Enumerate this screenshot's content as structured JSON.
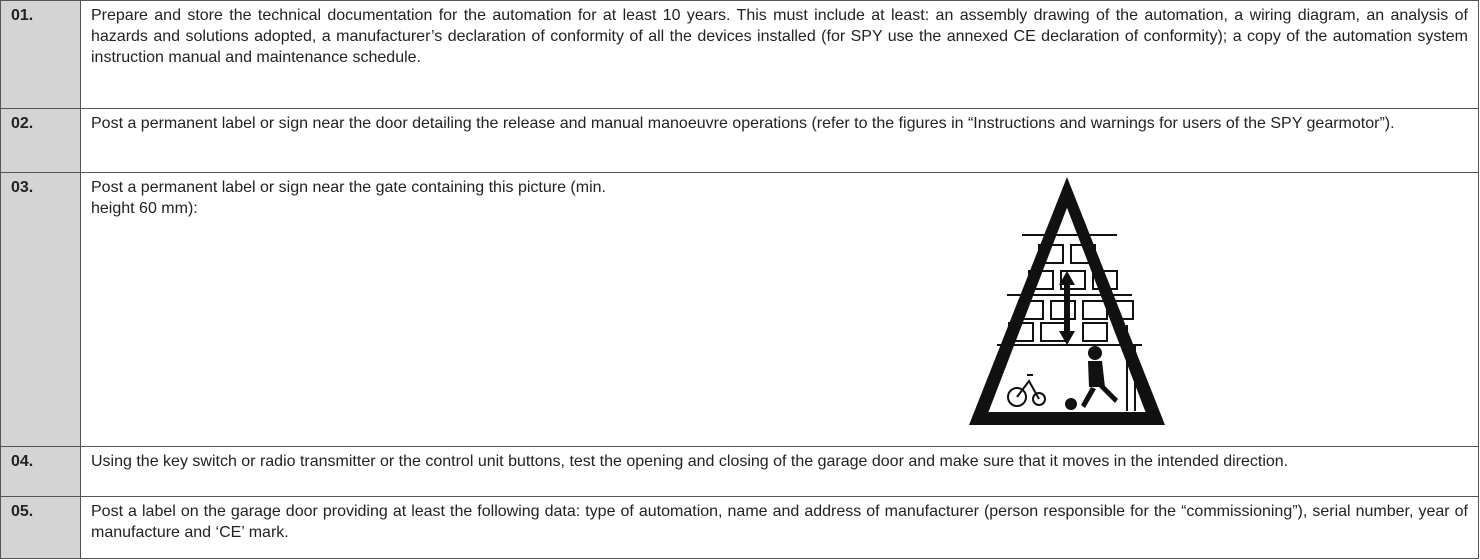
{
  "rows": [
    {
      "number": "01.",
      "text": "Prepare and store the technical documentation for the automation for at least 10 years. This must include at least: an assembly drawing of the automation, a wiring diagram, an analysis of hazards and solutions adopted, a manufacturer’s declaration of conformity of all the devices installed (for SPY use the annexed CE declaration of conformity); a copy of the automation system instruction manual and maintenance schedule."
    },
    {
      "number": "02.",
      "text": "Post a permanent label or sign near the door detailing the release and manual manoeuvre operations (refer to the figures in “Instructions and warnings for users of the SPY gearmotor”)."
    },
    {
      "number": "03.",
      "text": "Post a permanent label or sign near the gate containing this picture (min. height 60 mm):"
    },
    {
      "number": "04.",
      "text": "Using the key switch or radio transmitter or the control unit buttons, test the opening and closing of the garage door and make sure that it moves in the intended direction."
    },
    {
      "number": "05.",
      "text": "Post a label on the garage door providing at least the following data: type of automation, name and address of manufacturer (person responsible for the “commissioning”), serial number, year of manufacture and ‘CE’ mark."
    }
  ]
}
